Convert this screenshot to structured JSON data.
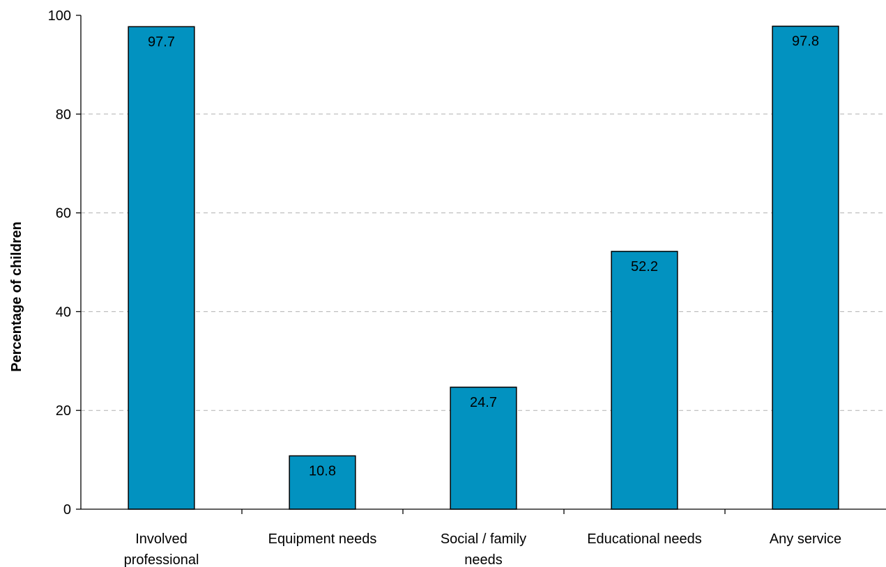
{
  "chart_data": {
    "type": "bar",
    "title": "",
    "xlabel": "",
    "ylabel": "Percentage of children",
    "ylim": [
      0,
      100
    ],
    "yticks": [
      0,
      20,
      40,
      60,
      80,
      100
    ],
    "grid": true,
    "legend": "none",
    "bar_color": "#0292c0",
    "categories": [
      [
        "Involved",
        "professional"
      ],
      [
        "Equipment needs"
      ],
      [
        "Social / family",
        "needs"
      ],
      [
        "Educational needs"
      ],
      [
        "Any service"
      ]
    ],
    "values": [
      97.7,
      10.8,
      24.7,
      52.2,
      97.8
    ],
    "data_labels": [
      "97.7",
      "10.8",
      "24.7",
      "52.2",
      "97.8"
    ]
  }
}
